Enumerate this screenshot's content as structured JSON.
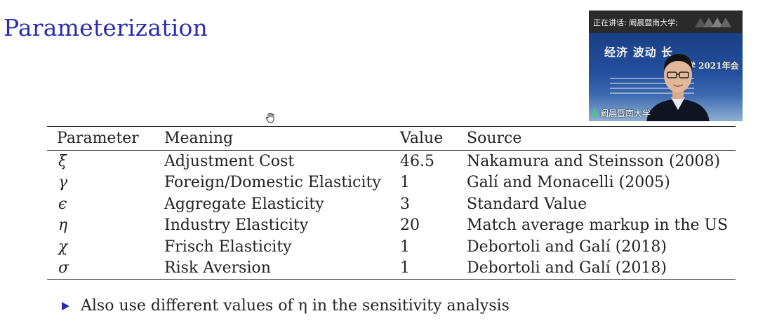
{
  "slide": {
    "title": "Parameterization",
    "table": {
      "headers": [
        "Parameter",
        "Meaning",
        "Value",
        "Source"
      ],
      "rows": [
        {
          "param": "ξ",
          "meaning": "Adjustment Cost",
          "value": "46.5",
          "source": "Nakamura and Steinsson (2008)"
        },
        {
          "param": "γ",
          "meaning": "Foreign/Domestic Elasticity",
          "value": "1",
          "source": "Galí and Monacelli (2005)"
        },
        {
          "param": "ϵ",
          "meaning": "Aggregate Elasticity",
          "value": "3",
          "source": "Standard Value"
        },
        {
          "param": "η",
          "meaning": "Industry Elasticity",
          "value": "20",
          "source": "Match average markup in the US"
        },
        {
          "param": "χ",
          "meaning": "Frisch Elasticity",
          "value": "1",
          "source": "Debortoli and Galí (2018)"
        },
        {
          "param": "σ",
          "meaning": "Risk Aversion",
          "value": "1",
          "source": "Debortoli and Galí (2018)"
        }
      ]
    },
    "bullet": "Also use different values of η in the sensitivity analysis"
  },
  "video_overlay": {
    "speaking_label": "正在讲话: 阚晨暨南大学;",
    "participant_name": "阚晨暨南大学",
    "backdrop_title": "经济 波动 长",
    "backdrop_subtitle": "学 2021年会"
  },
  "colors": {
    "title": "#2c2cb0",
    "bullet_marker": "#2c2cb0",
    "text": "#222222"
  },
  "icons": [
    "hand-cursor-icon",
    "microphone-icon",
    "right-triangle-bullet-icon"
  ]
}
